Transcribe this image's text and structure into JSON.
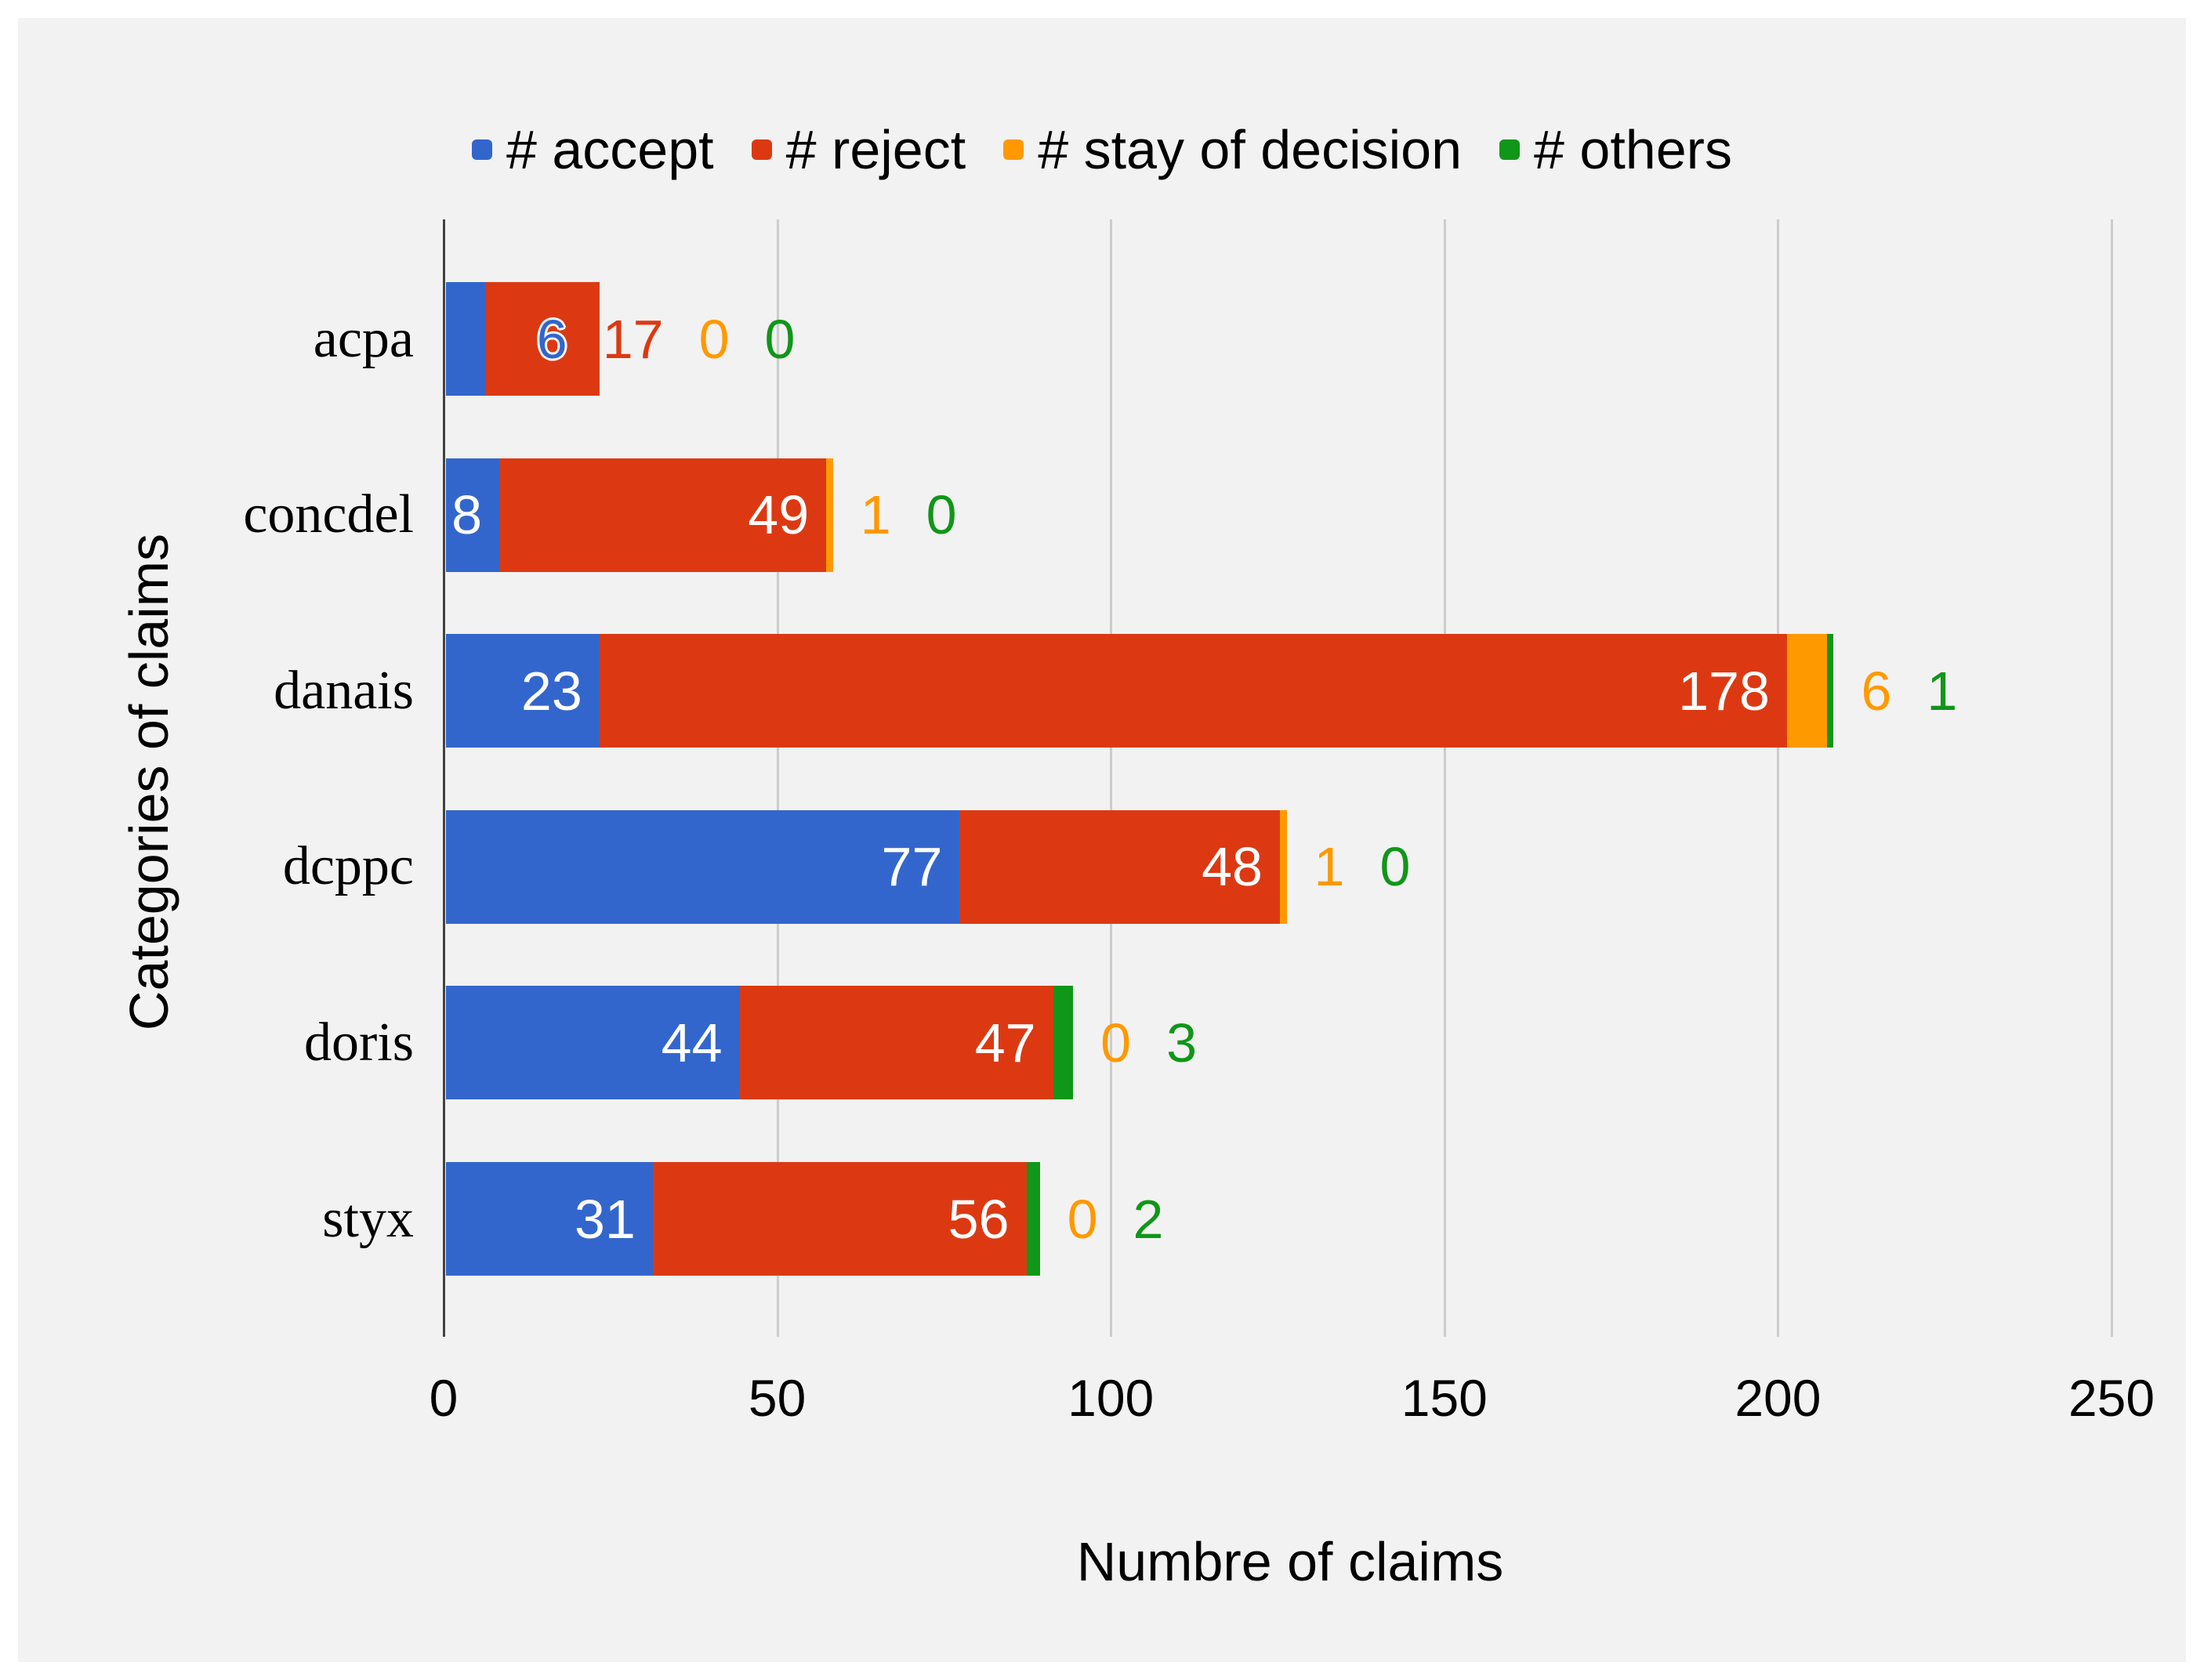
{
  "chart_data": {
    "type": "bar",
    "orientation": "horizontal",
    "stacked": true,
    "title": "",
    "xlabel": "Numbre of claims",
    "ylabel": "Categories of claims",
    "categories": [
      "acpa",
      "concdel",
      "danais",
      "dcppc",
      "doris",
      "styx"
    ],
    "series": [
      {
        "name": "# accept",
        "color": "#3366CC",
        "values": [
          6,
          8,
          23,
          77,
          44,
          31
        ]
      },
      {
        "name": "# reject",
        "color": "#DC3912",
        "values": [
          17,
          49,
          178,
          48,
          47,
          56
        ]
      },
      {
        "name": "# stay of decision",
        "color": "#FF9900",
        "values": [
          0,
          1,
          6,
          1,
          0,
          0
        ]
      },
      {
        "name": "# others",
        "color": "#109618",
        "values": [
          0,
          0,
          1,
          0,
          3,
          2
        ]
      }
    ],
    "xlim": [
      0,
      250
    ],
    "xticks": [
      0,
      50,
      100,
      150,
      200,
      250
    ],
    "grid": "vertical",
    "legend_position": "top",
    "data_labels": "shown",
    "colors": {
      "panel_background": "#f2f2f2",
      "outer_background": "#ffffff",
      "gridline": "#cccccc",
      "axis_line": "#424242",
      "text": "#000000",
      "inside_label": "#ffffff"
    }
  }
}
